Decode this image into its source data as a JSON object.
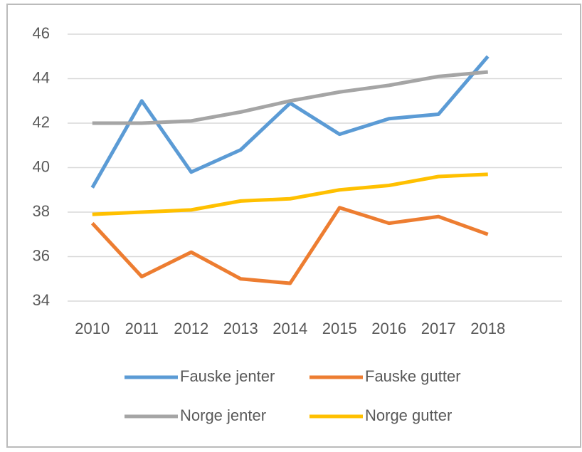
{
  "chart_data": {
    "type": "line",
    "categories": [
      "2010",
      "2011",
      "2012",
      "2013",
      "2014",
      "2015",
      "2016",
      "2017",
      "2018"
    ],
    "series": [
      {
        "name": "Fauske jenter",
        "color": "#5b9bd5",
        "values": [
          39.1,
          43.0,
          39.8,
          40.8,
          42.9,
          41.5,
          42.2,
          42.4,
          45.0
        ]
      },
      {
        "name": "Fauske gutter",
        "color": "#ed7d31",
        "values": [
          37.5,
          35.1,
          36.2,
          35.0,
          34.8,
          38.2,
          37.5,
          37.8,
          37.0
        ]
      },
      {
        "name": "Norge jenter",
        "color": "#a5a5a5",
        "values": [
          42.0,
          42.0,
          42.1,
          42.5,
          43.0,
          43.4,
          43.7,
          44.1,
          44.3
        ]
      },
      {
        "name": "Norge gutter",
        "color": "#ffc000",
        "values": [
          37.9,
          38.0,
          38.1,
          38.5,
          38.6,
          39.0,
          39.2,
          39.6,
          39.7
        ]
      }
    ],
    "ylim": [
      34,
      46
    ],
    "yticks": [
      34,
      36,
      38,
      40,
      42,
      44,
      46
    ],
    "grid": true,
    "legend": "bottom"
  }
}
